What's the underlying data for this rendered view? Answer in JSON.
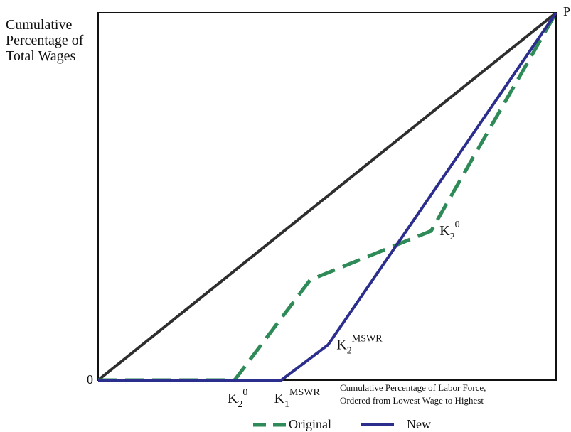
{
  "chart_data": {
    "type": "line",
    "title": "",
    "ylabel": [
      "Cumulative",
      "Percentage of",
      "Total Wages"
    ],
    "xlabel": [
      "Cumulative Percentage of Labor Force,",
      "Ordered from Lowest Wage to Highest"
    ],
    "origin_label": "0",
    "top_label": "P",
    "xlim": [
      0,
      1
    ],
    "ylim": [
      0,
      1
    ],
    "grid": false,
    "series": [
      {
        "name": "",
        "style": "solid",
        "color": "#2e2e2e",
        "x": [
          0,
          1
        ],
        "y": [
          0,
          1
        ]
      },
      {
        "name": "Original",
        "style": "dashed",
        "color": "#2e8b57",
        "x": [
          0,
          0.298,
          0.463,
          0.727,
          1
        ],
        "y": [
          0,
          0,
          0.273,
          0.406,
          1
        ]
      },
      {
        "name": "New",
        "style": "solid",
        "color": "#2b2e8c",
        "x": [
          0,
          0.4,
          0.502,
          1
        ],
        "y": [
          0,
          0,
          0.096,
          1
        ]
      }
    ],
    "annotations": [
      {
        "base": "K",
        "sub": "2",
        "sup": "0",
        "x": 0.298,
        "y": 0,
        "position": "below"
      },
      {
        "base": "K",
        "sub": "1",
        "sup": "MSWR",
        "x": 0.4,
        "y": 0,
        "position": "below"
      },
      {
        "base": "K",
        "sub": "2",
        "sup": "MSWR",
        "x": 0.502,
        "y": 0.096,
        "position": "right"
      },
      {
        "base": "K",
        "sub": "2",
        "sup": "0",
        "x": 0.727,
        "y": 0.406,
        "position": "right"
      }
    ],
    "legend": {
      "placement": "bottom",
      "items": [
        {
          "label": "Original",
          "style": "dashed",
          "color": "#2e8b57"
        },
        {
          "label": "New",
          "style": "solid",
          "color": "#2b2e8c"
        }
      ]
    }
  }
}
